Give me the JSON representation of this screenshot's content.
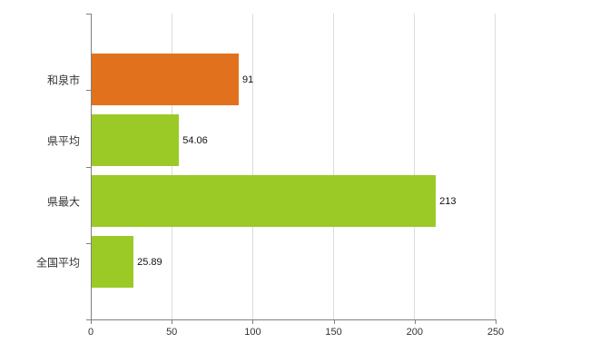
{
  "chart_data": {
    "type": "bar",
    "orientation": "horizontal",
    "title": "",
    "categories": [
      "和泉市",
      "県平均",
      "県最大",
      "全国平均"
    ],
    "values": [
      91,
      54.06,
      213,
      25.89
    ],
    "value_labels": [
      "91",
      "54.06",
      "213",
      "25.89"
    ],
    "bar_colors": [
      "#e2711d",
      "#9bca27",
      "#9bca27",
      "#9bca27"
    ],
    "xlim": [
      0,
      250
    ],
    "x_ticks": [
      0,
      50,
      100,
      150,
      200,
      250
    ],
    "x_tick_labels": [
      "0",
      "50",
      "100",
      "150",
      "200",
      "250"
    ],
    "grid": true,
    "legend": "none"
  },
  "colors": {
    "orange": "#e2711d",
    "green": "#9bca27",
    "axis": "#808080",
    "grid": "#dcdcdc",
    "tick_text": "#333333",
    "value_text": "#111111",
    "background": "#ffffff"
  }
}
